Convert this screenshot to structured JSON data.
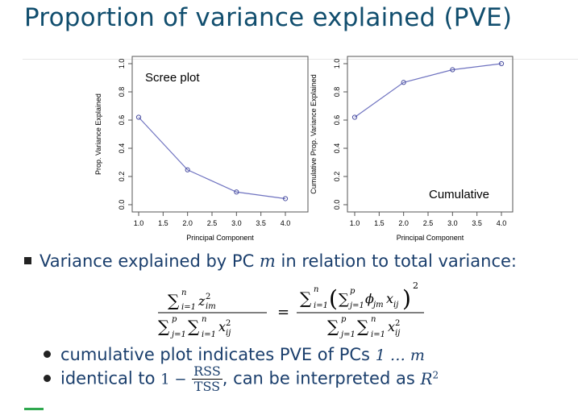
{
  "slide": {
    "title": "Proportion of variance explained (PVE)"
  },
  "charts": {
    "left_label": "Scree plot",
    "right_label": "Cumulative"
  },
  "chart_data": [
    {
      "type": "line",
      "x": [
        1,
        2,
        3,
        4
      ],
      "values": [
        0.62,
        0.247,
        0.09,
        0.043
      ],
      "xlabel": "Principal Component",
      "ylabel": "Prop. Variance Explained",
      "xlim": [
        1,
        4
      ],
      "ylim": [
        0,
        1
      ],
      "x_ticks": [
        "1.0",
        "1.5",
        "2.0",
        "2.5",
        "3.0",
        "3.5",
        "4.0"
      ],
      "y_ticks": [
        "0.0",
        "0.2",
        "0.4",
        "0.6",
        "0.8",
        "1.0"
      ],
      "annotation": "Scree plot",
      "grid": false,
      "color": "#6f73c0"
    },
    {
      "type": "line",
      "x": [
        1,
        2,
        3,
        4
      ],
      "values": [
        0.62,
        0.867,
        0.957,
        1.0
      ],
      "xlabel": "Principal Component",
      "ylabel": "Cumulative Prop. Variance Explained",
      "xlim": [
        1,
        4
      ],
      "ylim": [
        0,
        1
      ],
      "x_ticks": [
        "1.0",
        "1.5",
        "2.0",
        "2.5",
        "3.0",
        "3.5",
        "4.0"
      ],
      "y_ticks": [
        "0.0",
        "0.2",
        "0.4",
        "0.6",
        "0.8",
        "1.0"
      ],
      "annotation": "Cumulative",
      "grid": false,
      "color": "#6f73c0"
    }
  ],
  "bullets": {
    "main_text": "Variance explained by PC",
    "main_var": "m",
    "main_text_end": "in relation to total variance:",
    "sub1_text": "cumulative plot indicates PVE of PCs",
    "sub1_math": "1 … m",
    "sub2_text_a": "identical to",
    "sub2_one_minus": "1 −",
    "sub2_num": "RSS",
    "sub2_den": "TSS",
    "sub2_text_b": ", can be interpreted as",
    "sub2_r2": "R",
    "sub2_r2_exp": "2"
  },
  "formula": {
    "equals": "="
  }
}
